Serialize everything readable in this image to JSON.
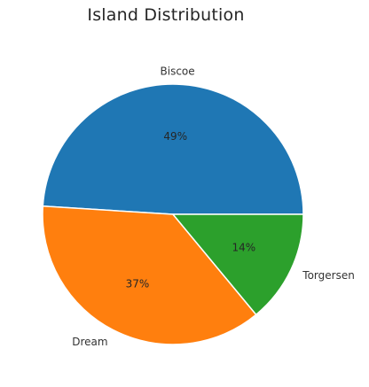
{
  "chart_data": {
    "type": "pie",
    "title": "Island Distribution",
    "categories": [
      "Biscoe",
      "Dream",
      "Torgersen"
    ],
    "values": [
      49,
      37,
      14
    ],
    "value_labels": [
      "49%",
      "37%",
      "14%"
    ],
    "colors": [
      "#1f77b4",
      "#ff7f0e",
      "#2ca02c"
    ],
    "start_angle_deg": 0,
    "direction": "counterclockwise",
    "legend": "none"
  }
}
